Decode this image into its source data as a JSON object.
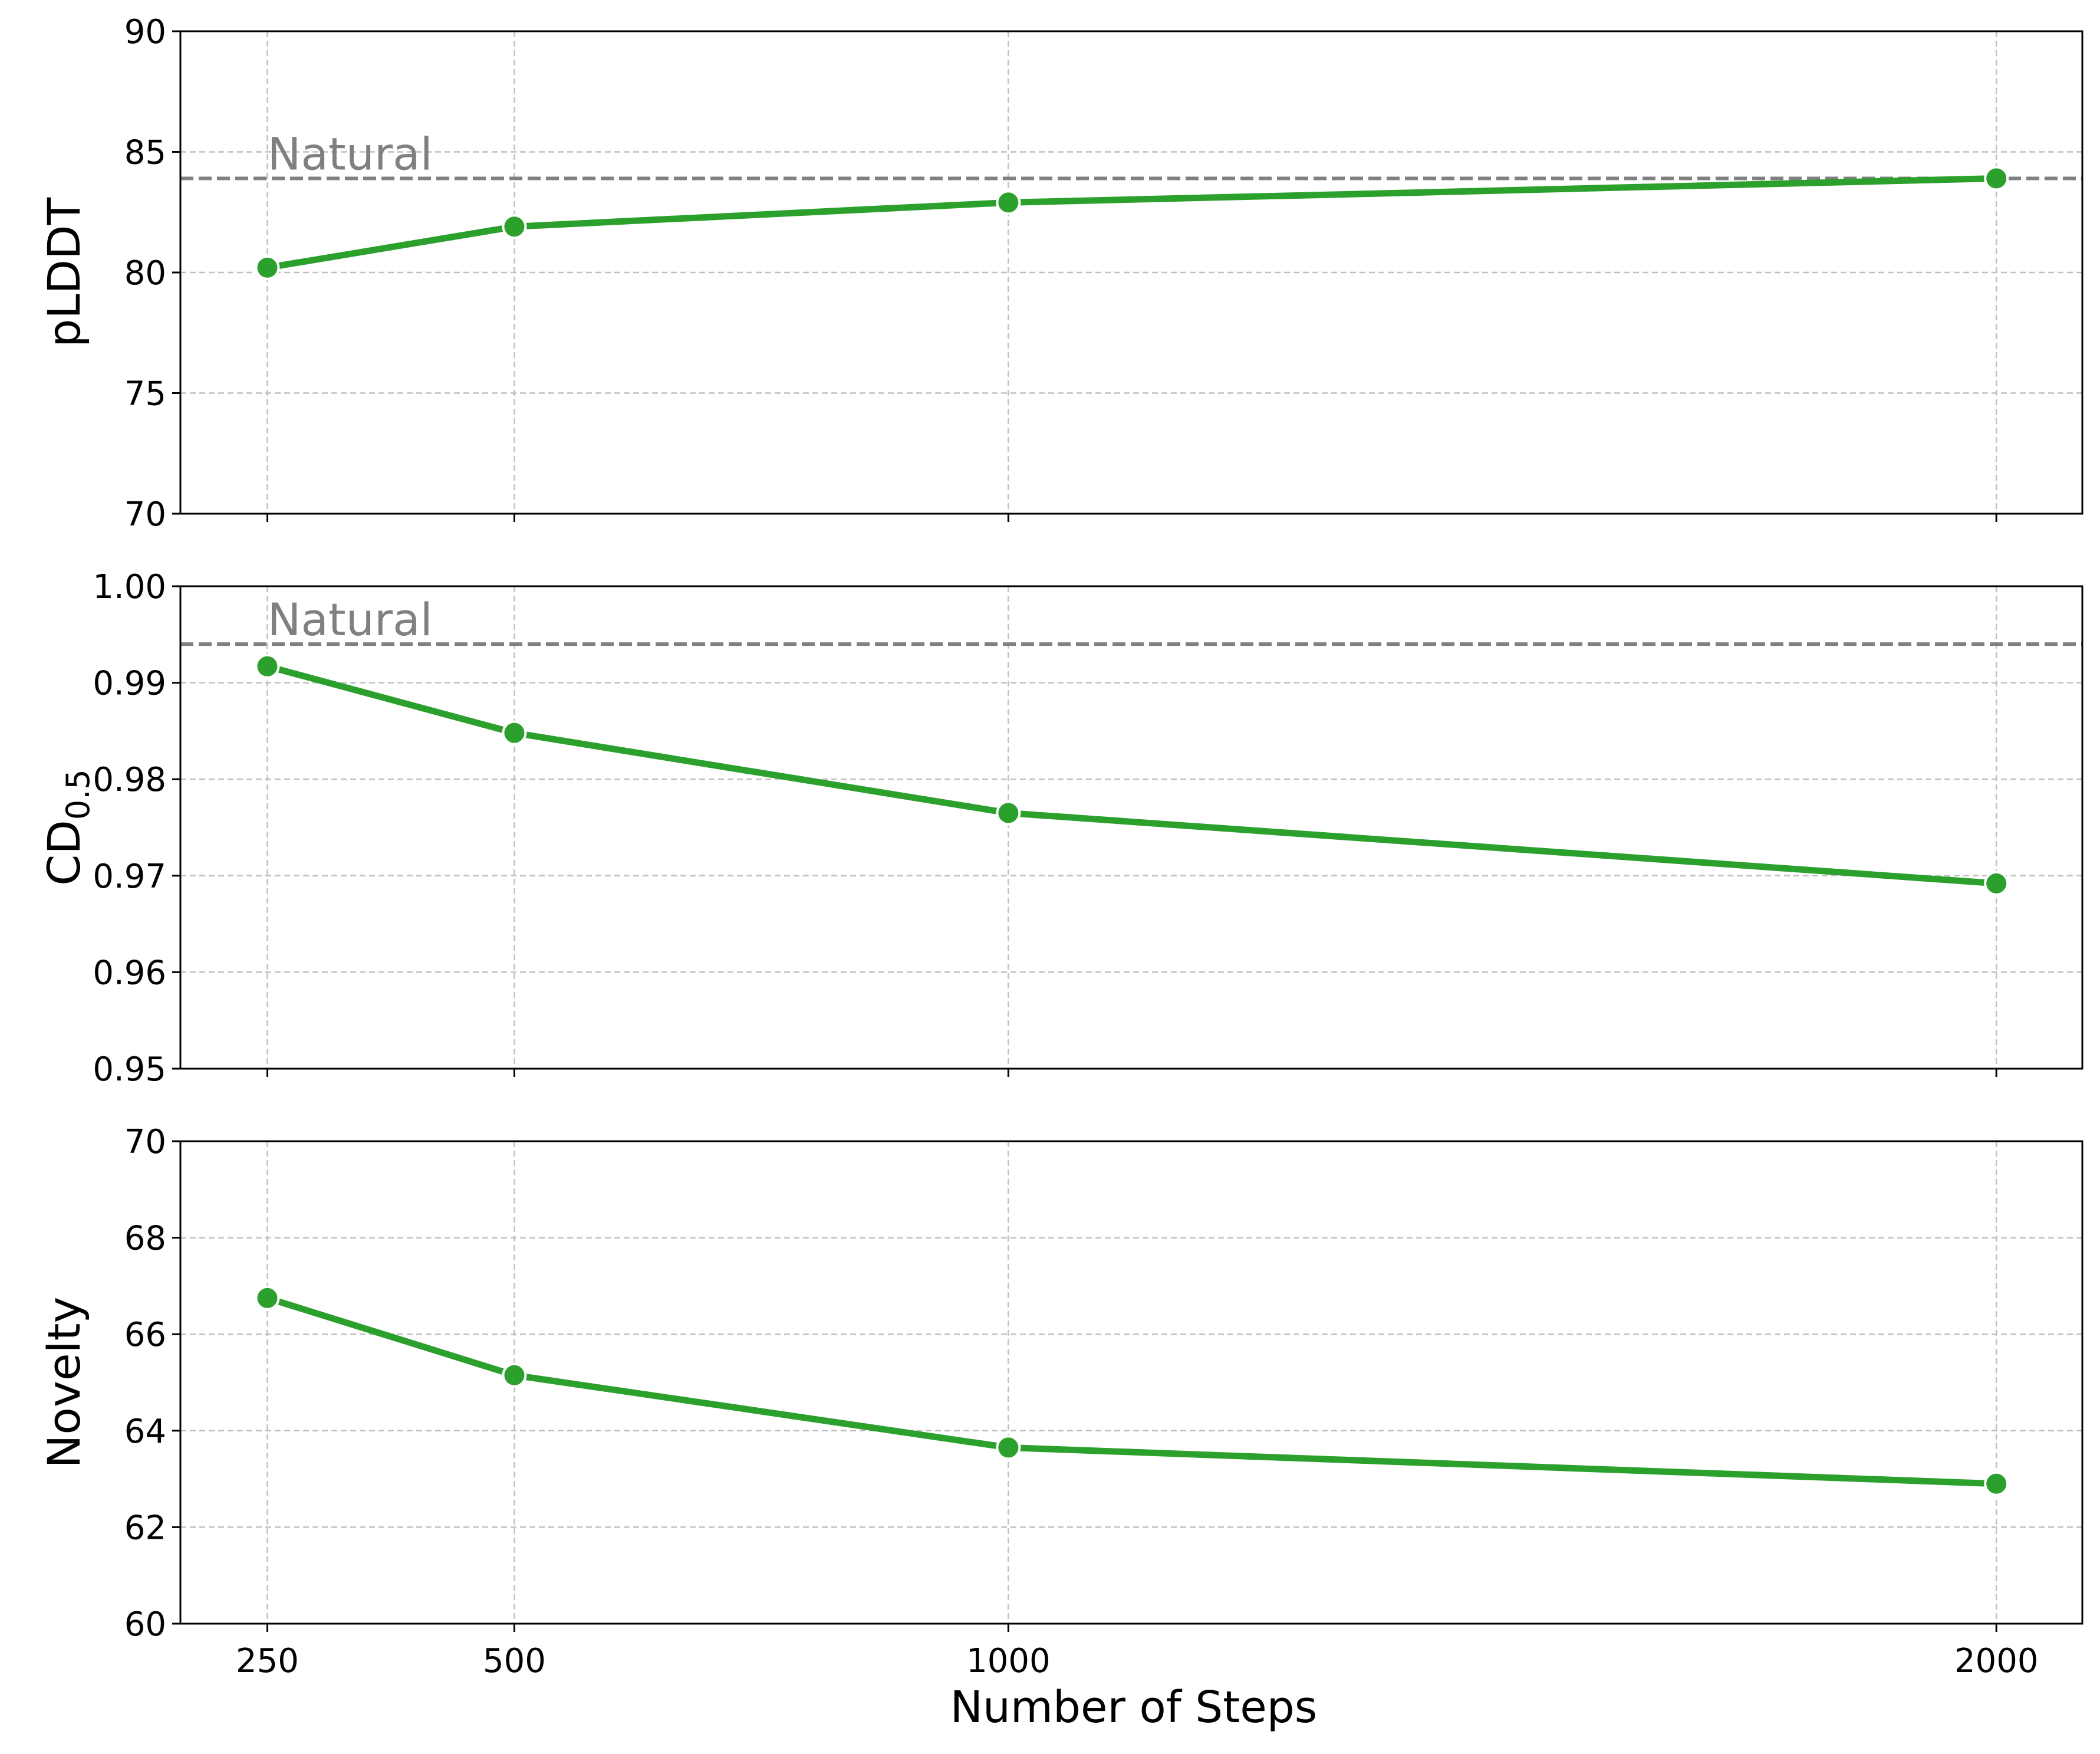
{
  "figure": {
    "xlabel": "Number of Steps"
  },
  "colors": {
    "series": "#2ca02c",
    "reference": "#808080",
    "grid": "#c0c0c0",
    "axis": "#000000",
    "marker_edge": "#ffffff"
  },
  "chart_data": [
    {
      "type": "line",
      "ylabel": "pLDDT",
      "ylabel_sub": "",
      "x": [
        250,
        500,
        1000,
        2000
      ],
      "y": [
        80.2,
        81.9,
        82.9,
        83.9
      ],
      "xlim": [
        162,
        2087
      ],
      "xticks": [
        250,
        500,
        1000,
        2000
      ],
      "xtick_labels_visible": false,
      "ylim": [
        70,
        90
      ],
      "yticks": [
        70,
        75,
        80,
        85,
        90
      ],
      "ytick_labels": [
        "70",
        "75",
        "80",
        "85",
        "90"
      ],
      "grid": true,
      "reference": {
        "label": "Natural",
        "y": 83.9,
        "style": "dashed"
      },
      "marker": "circle"
    },
    {
      "type": "line",
      "ylabel": "CD",
      "ylabel_sub": "0.5",
      "x": [
        250,
        500,
        1000,
        2000
      ],
      "y": [
        0.9917,
        0.9848,
        0.9765,
        0.9692
      ],
      "xlim": [
        162,
        2087
      ],
      "xticks": [
        250,
        500,
        1000,
        2000
      ],
      "xtick_labels_visible": false,
      "ylim": [
        0.95,
        1.0
      ],
      "yticks": [
        0.95,
        0.96,
        0.97,
        0.98,
        0.99,
        1.0
      ],
      "ytick_labels": [
        "0.95",
        "0.96",
        "0.97",
        "0.98",
        "0.99",
        "1.00"
      ],
      "grid": true,
      "reference": {
        "label": "Natural",
        "y": 0.994,
        "style": "dashed"
      },
      "marker": "circle"
    },
    {
      "type": "line",
      "ylabel": "Novelty",
      "ylabel_sub": "",
      "x": [
        250,
        500,
        1000,
        2000
      ],
      "y": [
        66.75,
        65.15,
        63.65,
        62.9
      ],
      "xlim": [
        162,
        2087
      ],
      "xticks": [
        250,
        500,
        1000,
        2000
      ],
      "xtick_labels_visible": true,
      "xtick_labels": [
        "250",
        "500",
        "1000",
        "2000"
      ],
      "ylim": [
        60,
        70
      ],
      "yticks": [
        60,
        62,
        64,
        66,
        68,
        70
      ],
      "ytick_labels": [
        "60",
        "62",
        "64",
        "66",
        "68",
        "70"
      ],
      "grid": true,
      "reference": null,
      "marker": "circle"
    }
  ]
}
